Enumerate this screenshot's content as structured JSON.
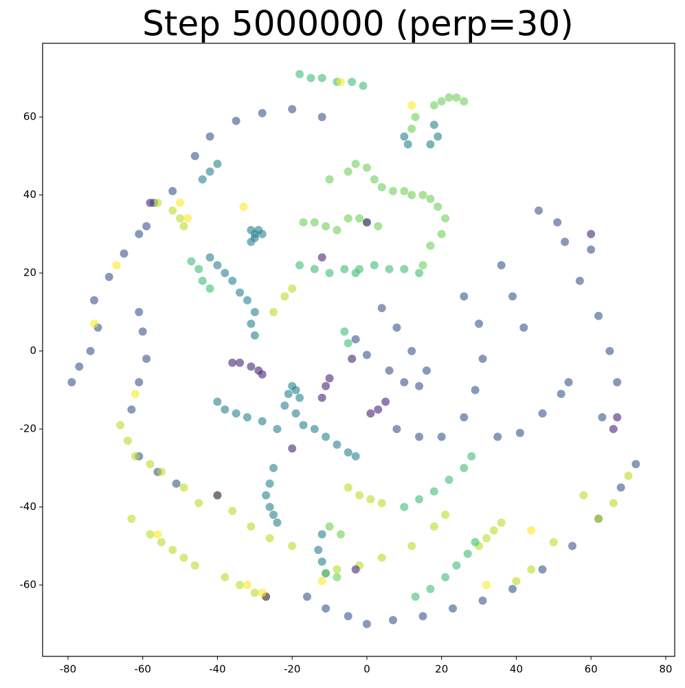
{
  "chart_data": {
    "type": "scatter",
    "title": "Step 5000000 (perp=30)",
    "xlim": [
      -86.8,
      82.4
    ],
    "ylim": [
      -78.3,
      78.9
    ],
    "xticks": [
      -80,
      -60,
      -40,
      -20,
      0,
      20,
      40,
      60,
      80
    ],
    "yticks": [
      -60,
      -40,
      -20,
      0,
      20,
      40,
      60
    ],
    "grid": false,
    "series": [
      {
        "color": "#39568c",
        "x": [
          -79,
          -77,
          -74,
          -72,
          -73,
          -69,
          -65,
          -61,
          -59,
          -57,
          -52,
          -46,
          -42,
          -35,
          -28,
          -20,
          -12,
          -16,
          -11,
          -5,
          0,
          7,
          15,
          23,
          31,
          39,
          47,
          55,
          62,
          68,
          72,
          60,
          57,
          62,
          65,
          67,
          63,
          -3,
          0,
          6,
          10,
          14,
          16,
          12,
          8,
          4,
          8,
          14,
          20,
          26,
          29,
          31,
          30,
          26,
          35,
          41,
          47,
          52,
          54,
          36,
          39,
          42,
          46,
          51,
          53,
          -61,
          -60,
          -59,
          -61,
          -63,
          -61,
          -56,
          -51
        ],
        "y": [
          -8,
          -4,
          0,
          6,
          13,
          19,
          25,
          30,
          32,
          38,
          41,
          50,
          55,
          59,
          61,
          62,
          60,
          -63,
          -66,
          -68,
          -70,
          -69,
          -68,
          -66,
          -64,
          -61,
          -56,
          -50,
          -43,
          -35,
          -29,
          26,
          18,
          9,
          0,
          -8,
          -17,
          3,
          -1,
          -5,
          -8,
          -9,
          -5,
          0,
          6,
          11,
          -20,
          -22,
          -22,
          -17,
          -10,
          -2,
          7,
          14,
          -22,
          -21,
          -16,
          -11,
          -8,
          22,
          14,
          6,
          36,
          33,
          28,
          10,
          5,
          -2,
          -8,
          -15,
          -27,
          -31,
          -34
        ]
      },
      {
        "color": "#26828e",
        "x": [
          -31,
          -30,
          -29,
          -30,
          -31,
          -28,
          -20,
          -19,
          -21,
          -18,
          -22,
          -19,
          -17,
          -14,
          -11,
          -8,
          -5,
          -3,
          -42,
          -40,
          -38,
          -36,
          -34,
          -32,
          -30,
          -31,
          -30,
          -25,
          -26,
          -27,
          -26,
          -25,
          -24,
          -13,
          -12,
          -11,
          -12,
          -40,
          -38,
          -35,
          -32,
          -28,
          -24,
          -44,
          -42,
          -40,
          18,
          19,
          17,
          10,
          11
        ],
        "y": [
          31,
          30,
          31,
          29,
          28,
          30,
          -9,
          -10,
          -11,
          -12,
          -14,
          -16,
          -19,
          -20,
          -22,
          -24,
          -26,
          -27,
          24,
          22,
          20,
          18,
          15,
          13,
          10,
          7,
          4,
          -30,
          -34,
          -37,
          -40,
          -42,
          -44,
          -51,
          -54,
          -57,
          -47,
          -13,
          -15,
          -16,
          -17,
          -18,
          -20,
          44,
          46,
          48,
          58,
          55,
          53,
          55,
          53
        ]
      },
      {
        "color": "#6ece58",
        "x": [
          -10,
          -5,
          -3,
          0,
          2,
          4,
          7,
          10,
          12,
          15,
          17,
          19,
          21,
          20,
          17,
          15,
          -17,
          -14,
          -11,
          -8,
          -5,
          -2,
          0,
          3,
          18,
          20,
          22,
          24,
          26,
          12,
          13,
          -10,
          -7,
          -11,
          -8
        ],
        "y": [
          44,
          46,
          48,
          47,
          44,
          42,
          41,
          41,
          40,
          40,
          39,
          37,
          34,
          30,
          27,
          22,
          33,
          33,
          32,
          31,
          34,
          34,
          33,
          32,
          63,
          64,
          65,
          65,
          64,
          57,
          60,
          -45,
          -47,
          -57,
          -58
        ]
      },
      {
        "color": "#b8de29",
        "x": [
          -63,
          -58,
          -55,
          -52,
          -49,
          -46,
          -38,
          -34,
          -30,
          -27,
          -40,
          -36,
          -31,
          -26,
          -20,
          -5,
          -2,
          1,
          4,
          -8,
          -2,
          4,
          12,
          18,
          21,
          30,
          32,
          34,
          36,
          -56,
          -52,
          -50,
          -49,
          -25,
          -22,
          -20,
          -66,
          -64,
          -62,
          -58,
          -55,
          -49,
          -45,
          40,
          44,
          50,
          58,
          62,
          66,
          70
        ],
        "y": [
          -43,
          -47,
          -49,
          -51,
          -53,
          -55,
          -58,
          -60,
          -62,
          -63,
          -37,
          -41,
          -45,
          -48,
          -50,
          -35,
          -37,
          -38,
          -39,
          -56,
          -55,
          -53,
          -50,
          -45,
          -42,
          -50,
          -48,
          -46,
          -44,
          38,
          36,
          34,
          32,
          10,
          14,
          16,
          -19,
          -23,
          -27,
          -29,
          -31,
          -35,
          -39,
          -59,
          -56,
          -49,
          -37,
          -43,
          -39,
          -32
        ]
      },
      {
        "color": "#3fbc73",
        "x": [
          -18,
          -15,
          -12,
          -8,
          -4,
          -1,
          -18,
          -14,
          -10,
          -6,
          -2,
          2,
          6,
          10,
          14,
          -3,
          -47,
          -45,
          -44,
          -42,
          13,
          17,
          21,
          24,
          27,
          29,
          10,
          14,
          18,
          22,
          26,
          28,
          -6,
          -5
        ],
        "y": [
          71,
          70,
          70,
          69,
          69,
          68,
          22,
          21,
          20,
          21,
          21,
          22,
          21,
          21,
          20,
          20,
          23,
          21,
          18,
          16,
          -63,
          -61,
          -58,
          -55,
          -52,
          -49,
          -40,
          -38,
          -36,
          -33,
          -30,
          -27,
          5,
          2
        ]
      },
      {
        "color": "#482475",
        "x": [
          -36,
          -34,
          -31,
          -29,
          -28,
          -58,
          -40,
          -27,
          -11,
          -10,
          -12,
          0,
          1,
          3,
          5,
          -4,
          60,
          66,
          67,
          -12,
          -20,
          -3
        ],
        "y": [
          -3,
          -3,
          -4,
          -5,
          -6,
          38,
          -37,
          -63,
          -9,
          -7,
          -12,
          33,
          -16,
          -15,
          -13,
          -2,
          30,
          -20,
          -17,
          24,
          -25,
          -56
        ]
      },
      {
        "color": "#fde725",
        "x": [
          -73,
          -67,
          -56,
          -50,
          -48,
          -32,
          -28,
          -12,
          -7,
          12,
          32,
          44,
          -33,
          -62
        ],
        "y": [
          7,
          22,
          -47,
          38,
          34,
          -60,
          -62,
          -59,
          69,
          63,
          -60,
          -46,
          37,
          -11
        ]
      }
    ]
  }
}
